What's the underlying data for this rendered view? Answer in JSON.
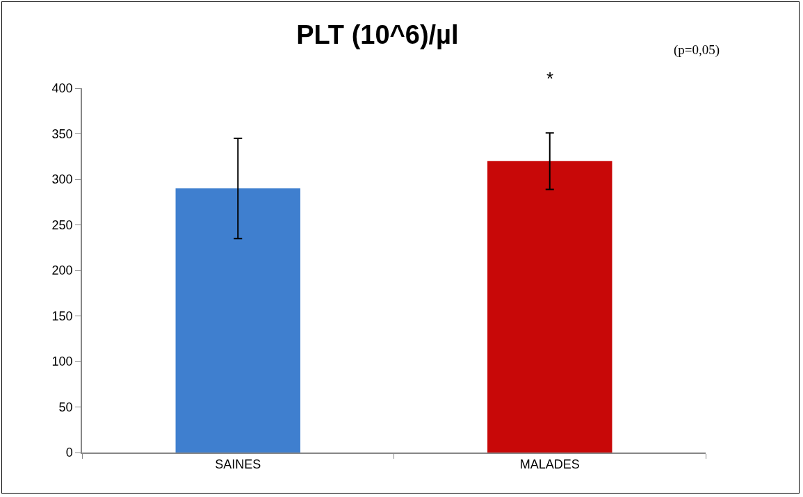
{
  "chart_data": {
    "type": "bar",
    "title": "PLT (10^6)/µl",
    "categories": [
      "SAINES",
      "MALADES"
    ],
    "values": [
      290,
      320
    ],
    "colors": [
      "#3f7fcf",
      "#c80808"
    ],
    "errors": [
      [
        235,
        345
      ],
      [
        289,
        351
      ]
    ],
    "ylim": [
      0,
      400
    ],
    "yticks": [
      0,
      50,
      100,
      150,
      200,
      250,
      300,
      350,
      400
    ],
    "grid": false,
    "annotations": [
      "*",
      "(p=0,05)"
    ]
  }
}
